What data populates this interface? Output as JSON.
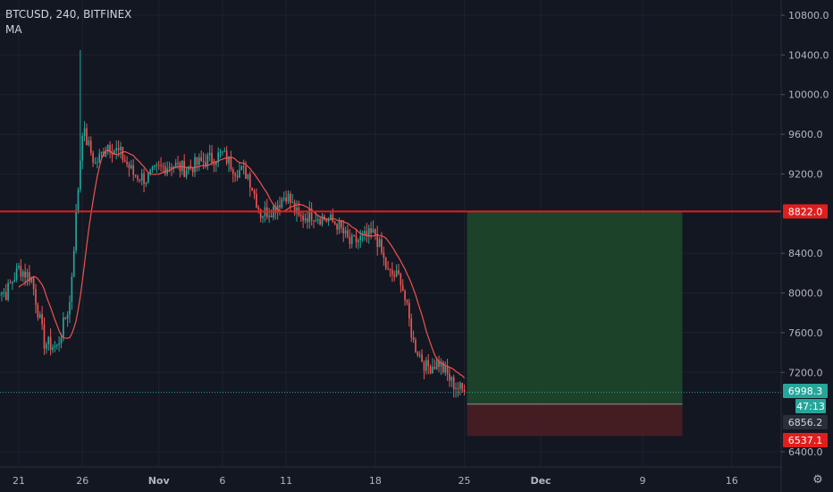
{
  "header": {
    "symbol": "BTCUSD",
    "interval": "240",
    "exchange": "BITFINEX",
    "indicator": "MA"
  },
  "colors": {
    "background": "#131722",
    "grid": "#1e222d",
    "up": "#26a69a",
    "down": "#ef5350",
    "ma": "#ef5350",
    "resistance": "#e01e1e",
    "profit_zone": "#1e4a2a",
    "loss_zone": "#4a1e24",
    "axis_text": "#b2b5be",
    "price_line": "#26a69a"
  },
  "chart_data": {
    "type": "candlestick",
    "yaxis": {
      "ticks": [
        "10800.0",
        "10400.0",
        "10000.0",
        "9600.0",
        "9200.0",
        "8400.0",
        "8000.0",
        "7600.0",
        "7200.0",
        "6400.0"
      ],
      "range": [
        6400,
        10900
      ]
    },
    "xaxis": {
      "ticks": [
        "21",
        "26",
        "Nov",
        "6",
        "11",
        "18",
        "25",
        "Dec",
        "9",
        "16"
      ]
    },
    "price_labels": [
      {
        "text": "8822.0",
        "value": 8822,
        "style": "resistance"
      },
      {
        "text": "6998.3",
        "value": 6998.3,
        "style": "current"
      },
      {
        "text": "47:13",
        "value": 6880,
        "style": "countdown"
      },
      {
        "text": "6856.2",
        "value": 6856.2,
        "style": "stop"
      },
      {
        "text": "6537.1",
        "value": 6537.1,
        "style": "low"
      }
    ],
    "resistance_level": 8822,
    "current_price": 6998.3,
    "position": {
      "entry": 6880,
      "target": 8822,
      "stop": 6560,
      "start_date": "2019-11-25",
      "end_date": "2019-12-11"
    },
    "series_anchors": [
      {
        "date": "2019-10-19",
        "close": 8050
      },
      {
        "date": "2019-10-20",
        "close": 8000
      },
      {
        "date": "2019-10-21",
        "close": 8250
      },
      {
        "date": "2019-10-22",
        "close": 8150
      },
      {
        "date": "2019-10-23",
        "close": 7500
      },
      {
        "date": "2019-10-24",
        "close": 7450
      },
      {
        "date": "2019-10-25",
        "close": 7900
      },
      {
        "date": "2019-10-26",
        "close": 9650
      },
      {
        "date": "2019-10-27",
        "close": 9300
      },
      {
        "date": "2019-10-28",
        "close": 9500
      },
      {
        "date": "2019-10-29",
        "close": 9400
      },
      {
        "date": "2019-10-30",
        "close": 9200
      },
      {
        "date": "2019-10-31",
        "close": 9150
      },
      {
        "date": "2019-11-01",
        "close": 9250
      },
      {
        "date": "2019-11-02",
        "close": 9300
      },
      {
        "date": "2019-11-03",
        "close": 9250
      },
      {
        "date": "2019-11-04",
        "close": 9300
      },
      {
        "date": "2019-11-05",
        "close": 9350
      },
      {
        "date": "2019-11-06",
        "close": 9400
      },
      {
        "date": "2019-11-07",
        "close": 9250
      },
      {
        "date": "2019-11-08",
        "close": 9200
      },
      {
        "date": "2019-11-09",
        "close": 8800
      },
      {
        "date": "2019-11-10",
        "close": 8850
      },
      {
        "date": "2019-11-11",
        "close": 9000
      },
      {
        "date": "2019-11-12",
        "close": 8750
      },
      {
        "date": "2019-11-13",
        "close": 8800
      },
      {
        "date": "2019-11-14",
        "close": 8750
      },
      {
        "date": "2019-11-15",
        "close": 8700
      },
      {
        "date": "2019-11-16",
        "close": 8500
      },
      {
        "date": "2019-11-17",
        "close": 8550
      },
      {
        "date": "2019-11-18",
        "close": 8600
      },
      {
        "date": "2019-11-19",
        "close": 8200
      },
      {
        "date": "2019-11-20",
        "close": 8150
      },
      {
        "date": "2019-11-21",
        "close": 7500
      },
      {
        "date": "2019-11-22",
        "close": 7250
      },
      {
        "date": "2019-11-23",
        "close": 7300
      },
      {
        "date": "2019-11-24",
        "close": 7100
      },
      {
        "date": "2019-11-25",
        "close": 6998
      }
    ]
  }
}
